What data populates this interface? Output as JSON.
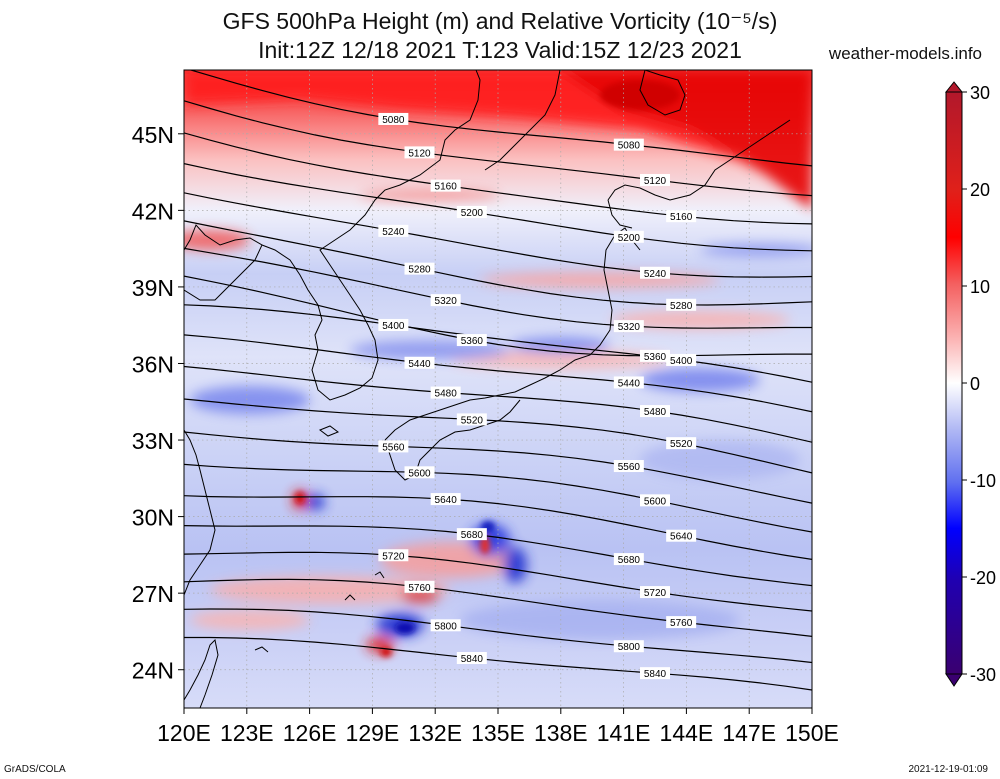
{
  "title_line1": "GFS 500hPa Height (m) and Relative Vorticity (10⁻⁵/s)",
  "title_line2": "Init:12Z 12/18 2021 T:123 Valid:15Z 12/23 2021",
  "website": "weather-models.info",
  "footer_left": "GrADS/COLA",
  "footer_right": "2021-12-19-01:09",
  "map": {
    "lon_range": [
      120,
      150
    ],
    "lat_range": [
      22.5,
      47.5
    ],
    "lon_ticks": [
      "120E",
      "123E",
      "126E",
      "129E",
      "132E",
      "135E",
      "138E",
      "141E",
      "144E",
      "147E",
      "150E"
    ],
    "lat_ticks": [
      "24N",
      "27N",
      "30N",
      "33N",
      "36N",
      "39N",
      "42N",
      "45N"
    ],
    "lat_values": [
      24,
      27,
      30,
      33,
      36,
      39,
      42,
      45
    ]
  },
  "colorbar": {
    "ticks": [
      "30",
      "20",
      "10",
      "0",
      "-10",
      "-20",
      "-30"
    ],
    "min": -30,
    "max": 30,
    "colors_top_to_bottom": [
      "#b2182b",
      "#e0201a",
      "#ff0000",
      "#f46060",
      "#fbb0b0",
      "#ffffff",
      "#b0b8f4",
      "#6070f0",
      "#0000ff",
      "#2000b0",
      "#3a0070"
    ]
  },
  "contours": [
    {
      "value": 5080,
      "label": "5080"
    },
    {
      "value": 5120,
      "label": "5120"
    },
    {
      "value": 5160,
      "label": "5160"
    },
    {
      "value": 5200,
      "label": "5200"
    },
    {
      "value": 5240,
      "label": "5240"
    },
    {
      "value": 5280,
      "label": "5280"
    },
    {
      "value": 5320,
      "label": "5320"
    },
    {
      "value": 5360,
      "label": "5360"
    },
    {
      "value": 5400,
      "label": "5400"
    },
    {
      "value": 5440,
      "label": "5440"
    },
    {
      "value": 5480,
      "label": "5480"
    },
    {
      "value": 5520,
      "label": "5520"
    },
    {
      "value": 5560,
      "label": "5560"
    },
    {
      "value": 5600,
      "label": "5600"
    },
    {
      "value": 5640,
      "label": "5640"
    },
    {
      "value": 5680,
      "label": "5680"
    },
    {
      "value": 5720,
      "label": "5720"
    },
    {
      "value": 5760,
      "label": "5760"
    },
    {
      "value": 5800,
      "label": "5800"
    },
    {
      "value": 5840,
      "label": "5840"
    }
  ]
}
